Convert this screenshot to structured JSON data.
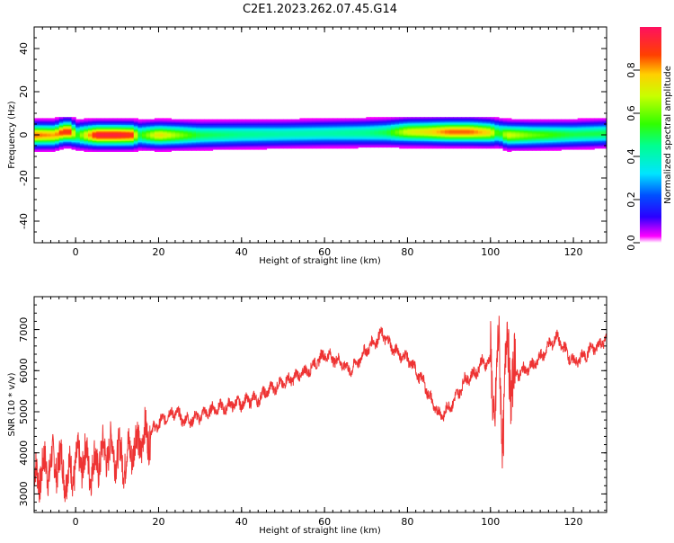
{
  "title": "C2E1.2023.262.07.45.G14",
  "chart_data": [
    {
      "type": "heatmap",
      "xlabel": "Height of straight line (km)",
      "ylabel": "Frequency (Hz)",
      "xlim": [
        -10,
        128
      ],
      "ylim": [
        -50,
        50
      ],
      "xticks": [
        0,
        20,
        40,
        60,
        80,
        100,
        120
      ],
      "yticks": [
        -40,
        -20,
        0,
        20,
        40
      ],
      "colorbar": {
        "label": "Normalized spectral amplitude",
        "ticks": [
          0.0,
          0.2,
          0.4,
          0.6,
          0.8
        ],
        "range": [
          0,
          1
        ]
      },
      "ridge": {
        "x": [
          -10,
          -5,
          -3,
          -1,
          0,
          5,
          10,
          14,
          15,
          20,
          30,
          40,
          50,
          60,
          70,
          75,
          80,
          85,
          90,
          95,
          100,
          102,
          104,
          110,
          120,
          128
        ],
        "freq": [
          0,
          0,
          1.5,
          1.5,
          0,
          0,
          0,
          0,
          0,
          0,
          0,
          0.3,
          0.5,
          0.8,
          1,
          1.2,
          1.5,
          1.5,
          1.5,
          1.5,
          1.2,
          1,
          0,
          0,
          0.3,
          0.8
        ],
        "peak": [
          0.85,
          0.8,
          0.9,
          0.9,
          0.5,
          0.95,
          0.95,
          0.9,
          0.5,
          0.75,
          0.5,
          0.45,
          0.42,
          0.42,
          0.45,
          0.5,
          0.7,
          0.75,
          0.85,
          0.85,
          0.75,
          0.5,
          0.7,
          0.6,
          0.5,
          0.5
        ],
        "width": [
          3,
          3,
          3,
          3,
          3,
          3,
          3,
          3,
          3,
          3,
          3,
          3,
          3,
          3,
          3,
          3,
          3,
          3,
          3,
          3,
          3,
          3,
          3,
          3,
          3,
          3
        ]
      }
    },
    {
      "type": "line",
      "xlabel": "Height of straight line (km)",
      "ylabel": "SNR (10 * v/v)",
      "xlim": [
        -10,
        128
      ],
      "ylim": [
        2550,
        7800
      ],
      "xticks": [
        0,
        20,
        40,
        60,
        80,
        100,
        120
      ],
      "yticks": [
        3000,
        4000,
        5000,
        6000,
        7000
      ],
      "color": "#ee3333",
      "series": [
        {
          "x": [
            -10,
            -8,
            -6,
            -4,
            -2,
            0,
            2,
            4,
            6,
            8,
            10,
            12,
            14,
            16,
            18,
            20,
            22,
            24,
            26,
            28,
            30,
            32,
            34,
            36,
            38,
            40,
            42,
            44,
            46,
            48,
            50,
            52,
            54,
            56,
            58,
            60,
            62,
            64,
            66,
            68,
            70,
            72,
            74,
            76,
            78,
            80,
            82,
            84,
            86,
            88,
            90,
            92,
            94,
            96,
            98,
            100,
            101,
            102,
            103,
            104,
            105,
            106,
            108,
            110,
            112,
            114,
            116,
            118,
            120,
            122,
            124,
            126,
            128
          ],
          "y": [
            3300,
            3600,
            3700,
            3800,
            3400,
            3700,
            3900,
            3600,
            3900,
            4100,
            4000,
            3800,
            4200,
            4300,
            4500,
            4700,
            4900,
            5000,
            4800,
            4800,
            4900,
            5000,
            5100,
            5100,
            5200,
            5200,
            5300,
            5300,
            5500,
            5600,
            5700,
            5800,
            5900,
            6000,
            6200,
            6400,
            6300,
            6200,
            6000,
            6200,
            6500,
            6700,
            6900,
            6600,
            6400,
            6300,
            6000,
            5700,
            5200,
            4900,
            5100,
            5400,
            5800,
            5900,
            6200,
            6200,
            5000,
            6500,
            4500,
            6800,
            5700,
            5900,
            6000,
            6100,
            6300,
            6600,
            6800,
            6500,
            6200,
            6300,
            6500,
            6600,
            6800
          ]
        }
      ]
    }
  ]
}
